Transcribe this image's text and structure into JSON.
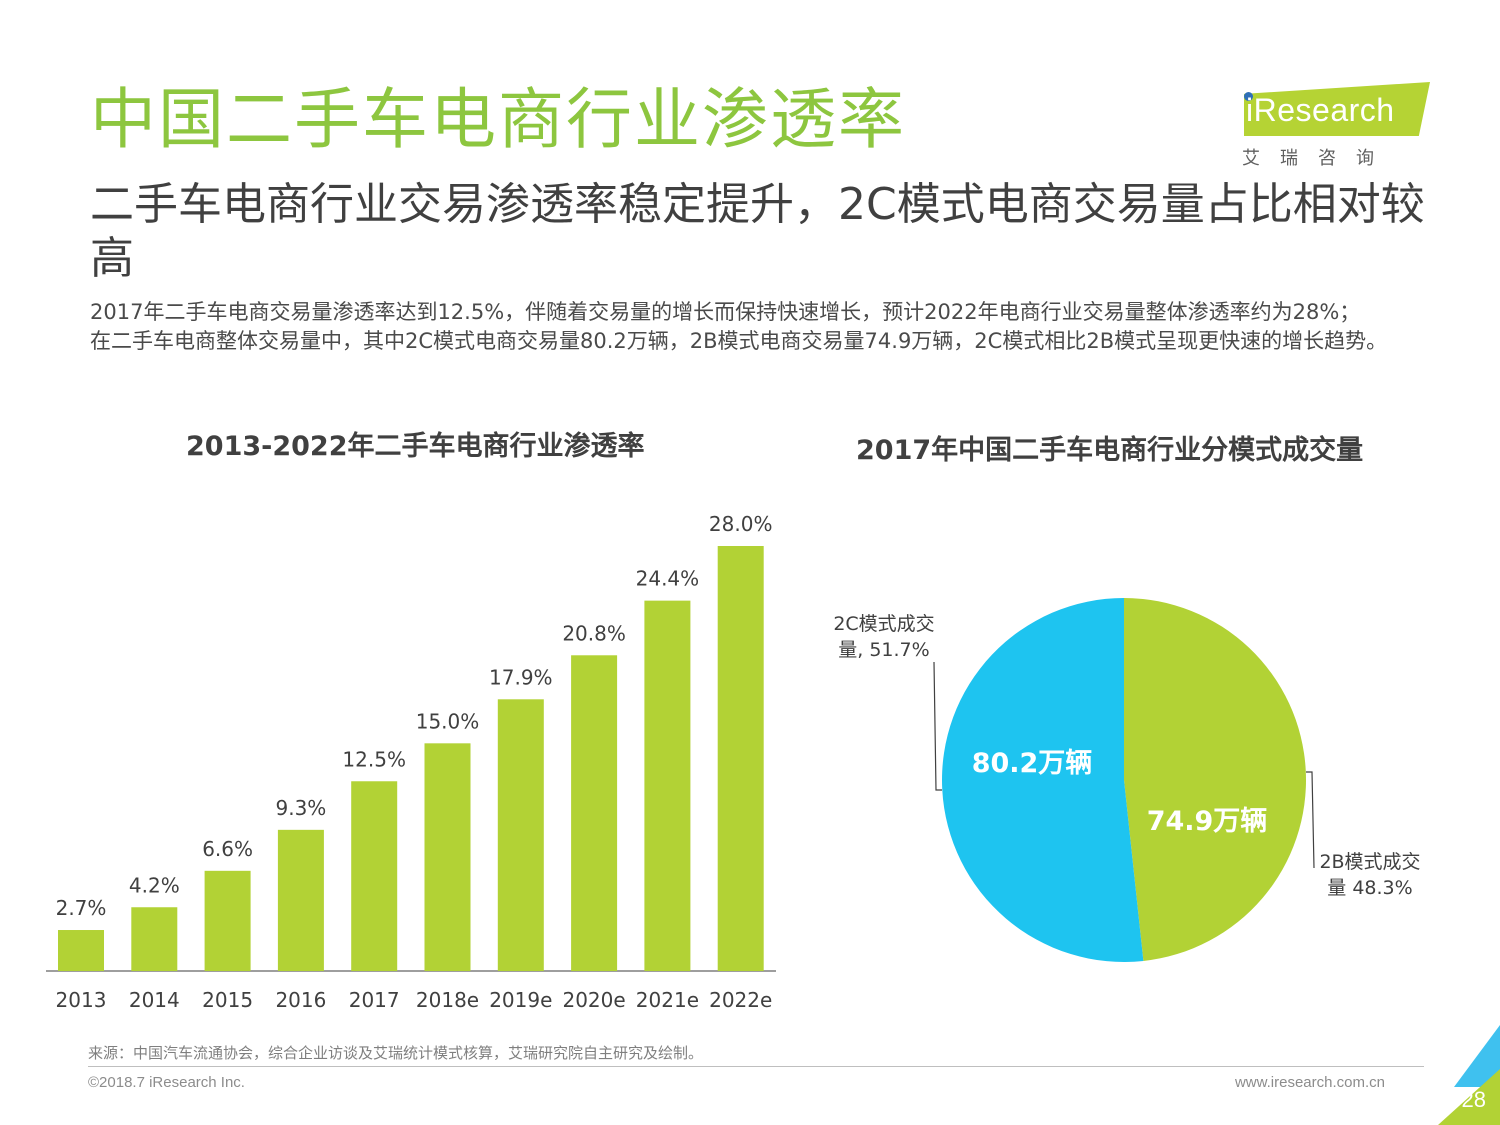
{
  "header": {
    "title": "中国二手车电商行业渗透率",
    "logo_text": "iResearch",
    "logo_cn": "艾瑞咨询"
  },
  "subtitle": "二手车电商行业交易渗透率稳定提升，2C模式电商交易量占比相对较高",
  "body": {
    "p1": "2017年二手车电商交易量渗透率达到12.5%，伴随着交易量的增长而保持快速增长，预计2022年电商行业交易量整体渗透率约为28%；",
    "p2": "在二手车电商整体交易量中，其中2C模式电商交易量80.2万辆，2B模式电商交易量74.9万辆，2C模式相比2B模式呈现更快速的增长趋势。"
  },
  "chart_data": [
    {
      "type": "bar",
      "title": "2013-2022年二手车电商行业渗透率",
      "categories": [
        "2013",
        "2014",
        "2015",
        "2016",
        "2017",
        "2018e",
        "2019e",
        "2020e",
        "2021e",
        "2022e"
      ],
      "values": [
        2.7,
        4.2,
        6.6,
        9.3,
        12.5,
        15.0,
        17.9,
        20.8,
        24.4,
        28.0
      ],
      "data_labels": [
        "2.7%",
        "4.2%",
        "6.6%",
        "9.3%",
        "12.5%",
        "15.0%",
        "17.9%",
        "20.8%",
        "24.4%",
        "28.0%"
      ],
      "ylim": [
        0,
        28
      ],
      "color": "#b2d235",
      "grid": false
    },
    {
      "type": "pie",
      "title": "2017年中国二手车电商行业分模式成交量",
      "slices": [
        {
          "label_line1": "2B模式成交",
          "label_line2": "量 48.3%",
          "value": 48.3,
          "inner_label": "74.9万辆",
          "color": "#b2d235"
        },
        {
          "label_line1": "2C模式成交",
          "label_line2": "量, 51.7%",
          "value": 51.7,
          "inner_label": "80.2万辆",
          "color": "#1ec4f0"
        }
      ]
    }
  ],
  "footer": {
    "source": "来源：中国汽车流通协会，综合企业访谈及艾瑞统计模式核算，艾瑞研究院自主研究及绘制。",
    "copyright": "©2018.7 iResearch Inc.",
    "website": "www.iresearch.com.cn",
    "page": "28"
  }
}
